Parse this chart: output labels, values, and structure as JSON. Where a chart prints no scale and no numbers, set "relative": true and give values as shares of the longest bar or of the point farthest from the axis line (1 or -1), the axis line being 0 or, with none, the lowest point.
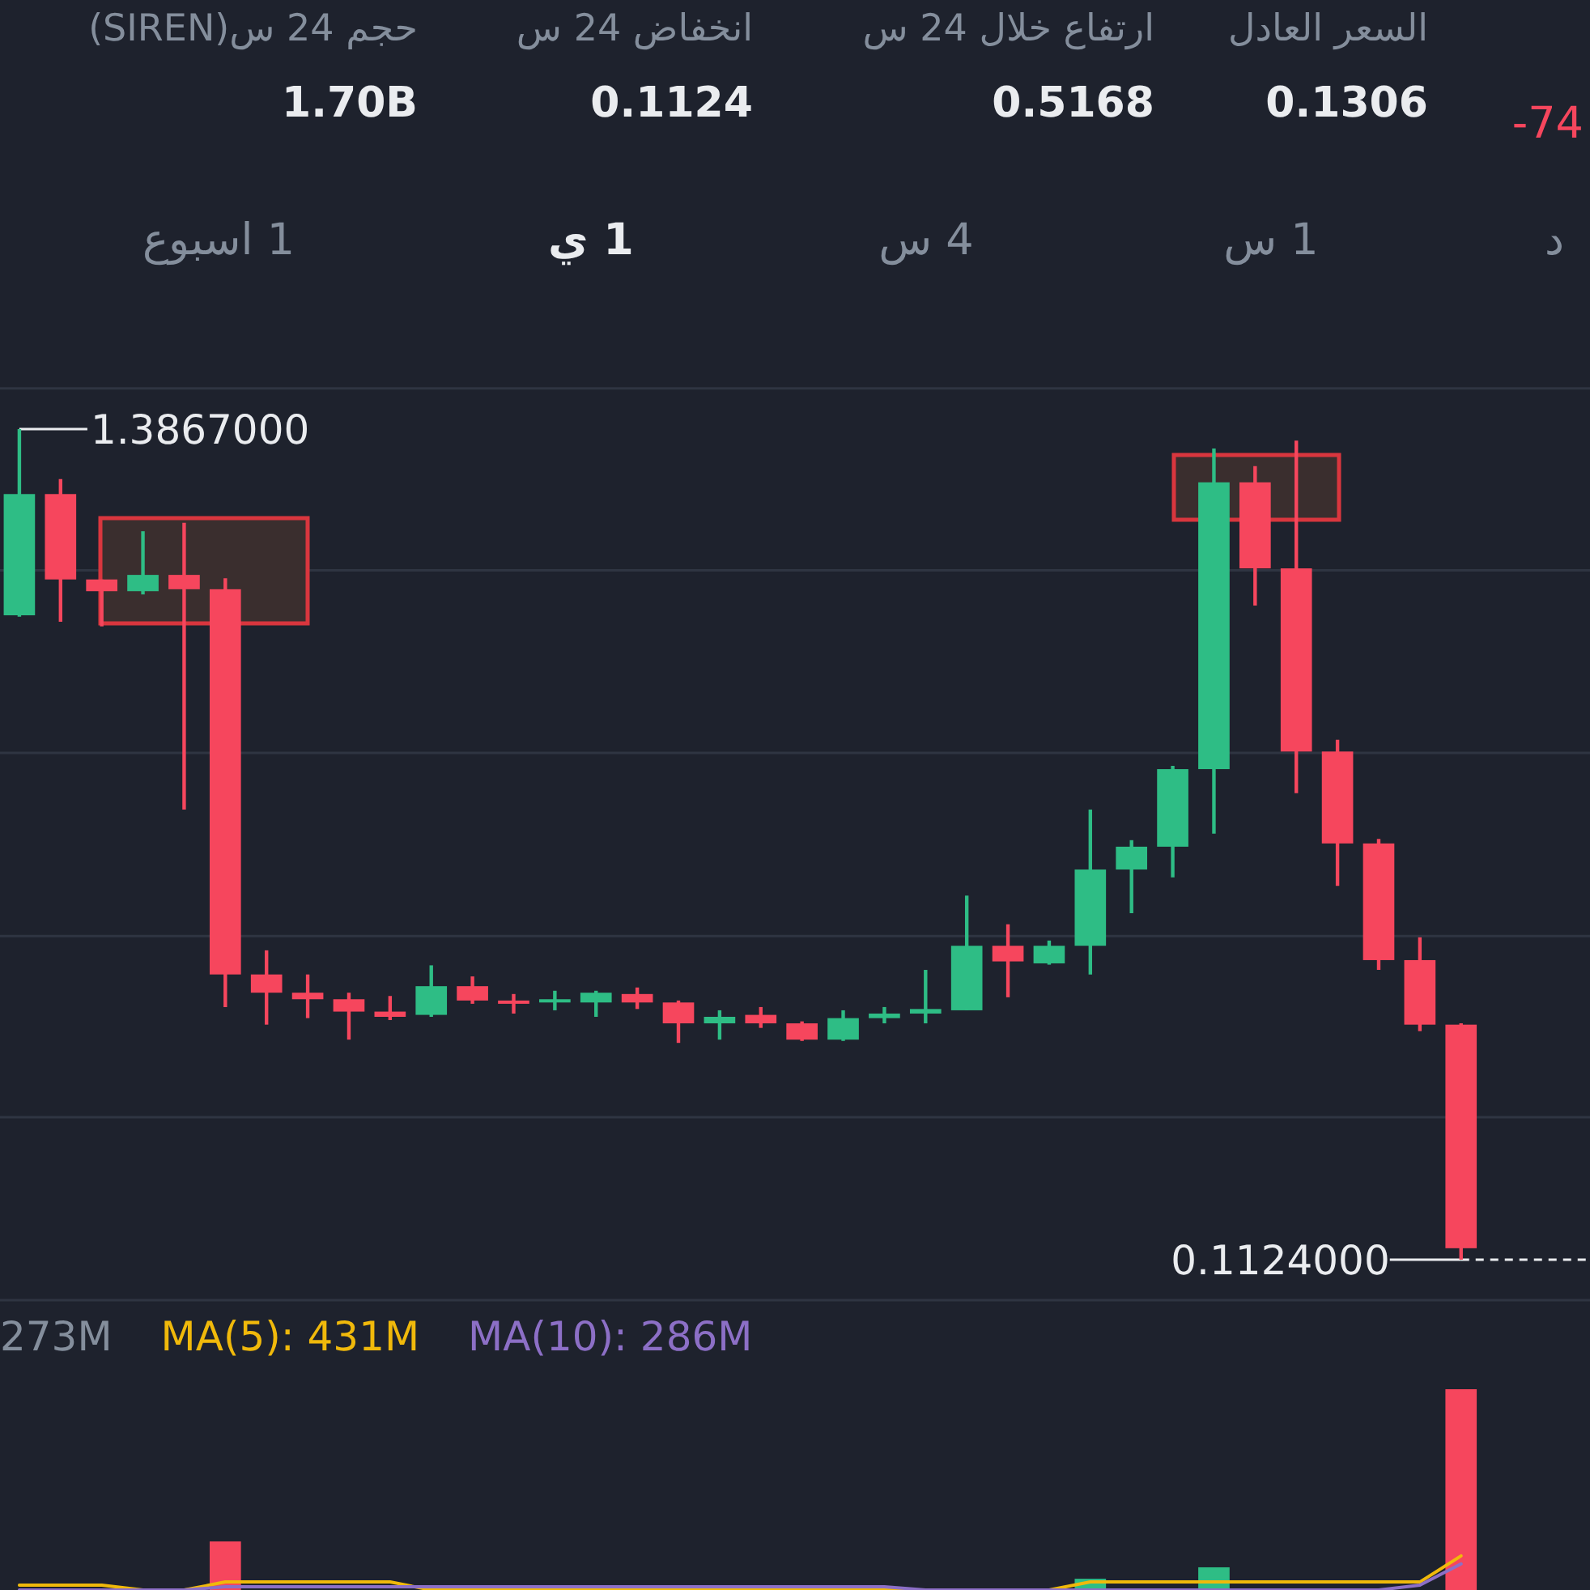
{
  "chart_data": [
    {
      "type": "other",
      "annotations": [
        "حجم 24 س(SIREN)",
        "1.70B",
        "انخفاض 24 س",
        "0.1124",
        "ارتفاع خلال 24 س",
        "0.5168",
        "السعر العادل",
        "0.1306",
        "-74",
        "1 اسبوع",
        "1 ي",
        "4 س",
        "1 س",
        "د"
      ]
    },
    {
      "type": "candlestick",
      "categories": [
        null,
        null,
        null,
        null,
        null,
        null,
        null,
        null,
        null,
        null,
        null,
        null,
        null,
        null,
        null,
        null,
        null,
        null,
        null,
        null,
        null,
        null,
        null,
        null,
        null,
        null,
        null,
        null,
        null,
        null,
        null,
        null,
        null,
        null,
        null,
        null
      ],
      "ohlc": [
        [
          1.101,
          1.3867,
          1.099,
          1.287
        ],
        [
          1.287,
          1.31,
          1.091,
          1.156
        ],
        [
          1.156,
          1.156,
          1.084,
          1.138
        ],
        [
          1.138,
          1.23,
          1.133,
          1.163
        ],
        [
          1.163,
          1.243,
          0.803,
          1.141
        ],
        [
          1.141,
          1.158,
          0.5,
          0.55
        ],
        [
          0.55,
          0.587,
          0.473,
          0.522
        ],
        [
          0.522,
          0.55,
          0.483,
          0.512
        ],
        [
          0.512,
          0.522,
          0.45,
          0.493
        ],
        [
          0.493,
          0.517,
          0.48,
          0.485
        ],
        [
          0.488,
          0.564,
          0.485,
          0.532
        ],
        [
          0.532,
          0.547,
          0.505,
          0.51
        ],
        [
          0.51,
          0.52,
          0.49,
          0.505
        ],
        [
          0.507,
          0.525,
          0.495,
          0.512
        ],
        [
          0.507,
          0.525,
          0.485,
          0.522
        ],
        [
          0.52,
          0.53,
          0.497,
          0.507
        ],
        [
          0.507,
          0.51,
          0.445,
          0.475
        ],
        [
          0.475,
          0.495,
          0.45,
          0.485
        ],
        [
          0.488,
          0.5,
          0.468,
          0.475
        ],
        [
          0.475,
          0.478,
          0.448,
          0.45
        ],
        [
          0.45,
          0.495,
          0.448,
          0.483
        ],
        [
          0.483,
          0.5,
          0.475,
          0.49
        ],
        [
          0.49,
          0.557,
          0.475,
          0.497
        ],
        [
          0.495,
          0.671,
          0.495,
          0.594
        ],
        [
          0.594,
          0.627,
          0.515,
          0.57
        ],
        [
          0.567,
          0.602,
          0.565,
          0.594
        ],
        [
          0.594,
          0.803,
          0.55,
          0.711
        ],
        [
          0.711,
          0.756,
          0.644,
          0.746
        ],
        [
          0.746,
          0.87,
          0.699,
          0.865
        ],
        [
          0.865,
          1.357,
          0.766,
          1.305
        ],
        [
          1.305,
          1.33,
          1.116,
          1.173
        ],
        [
          1.173,
          1.369,
          0.828,
          0.892
        ],
        [
          0.892,
          0.91,
          0.686,
          0.751
        ],
        [
          0.751,
          0.758,
          0.557,
          0.572
        ],
        [
          0.572,
          0.607,
          0.463,
          0.473
        ],
        [
          0.473,
          0.475,
          0.1124,
          0.13
        ]
      ],
      "yticks": [
        {
          "value": 0.331,
          "label": null
        },
        {
          "value": 0.609,
          "label": null
        },
        {
          "value": 0.89,
          "label": null
        },
        {
          "value": 1.17,
          "label": null
        },
        {
          "value": 1.449,
          "label": null
        }
      ],
      "grid": "y",
      "annotations": [
        "1.3867000",
        "0.1124000"
      ]
    },
    {
      "type": "bar",
      "relative": true,
      "categories": [
        null,
        null,
        null,
        null,
        null,
        null,
        null,
        null,
        null,
        null,
        null,
        null,
        null,
        null,
        null,
        null,
        null,
        null,
        null,
        null,
        null,
        null,
        null,
        null,
        null,
        null,
        null,
        null,
        null,
        null,
        null,
        null,
        null,
        null,
        null,
        null
      ],
      "annotations": [
        "273M"
      ],
      "series": [
        {
          "type": "bar",
          "colors": [
            "#2ebd85",
            "#f6465d",
            "#f6465d",
            "#2ebd85",
            "#f6465d",
            "#f6465d",
            "#f6465d",
            "#f6465d",
            "#f6465d",
            "#f6465d",
            "#2ebd85",
            "#f6465d",
            "#f6465d",
            "#2ebd85",
            "#2ebd85",
            "#f6465d",
            "#f6465d",
            "#2ebd85",
            "#f6465d",
            "#f6465d",
            "#2ebd85",
            "#2ebd85",
            "#2ebd85",
            "#2ebd85",
            "#f6465d",
            "#2ebd85",
            "#2ebd85",
            "#2ebd85",
            "#2ebd85",
            "#2ebd85",
            "#f6465d",
            "#f6465d",
            "#f6465d",
            "#f6465d",
            "#f6465d",
            "#f6465d"
          ],
          "values": [
            0,
            0,
            0,
            0,
            0,
            0.242,
            0,
            0,
            0,
            0,
            0,
            0,
            0,
            0,
            0,
            0,
            0,
            0,
            0,
            0,
            0,
            0,
            0,
            0,
            0,
            0,
            0.056,
            0,
            0,
            0.113,
            0,
            0,
            0,
            0,
            0,
            1
          ]
        },
        {
          "type": "line",
          "name": "MA(5): 431M",
          "color": "#f0b90b",
          "values": [
            0.024,
            0.024,
            0.024,
            0,
            0,
            0.04,
            0.04,
            0.04,
            0.04,
            0.04,
            0,
            0,
            0,
            0,
            0,
            0,
            0,
            0,
            0,
            0,
            0,
            0,
            0,
            0,
            0,
            0,
            0.04,
            0.04,
            0.04,
            0.04,
            0.04,
            0.04,
            0.04,
            0.04,
            0.04,
            0.17
          ]
        },
        {
          "type": "line",
          "name": "MA(10): 286M",
          "color": "#8c6fc6",
          "values": [
            0,
            0,
            0,
            0,
            0,
            0.016,
            0.016,
            0.016,
            0.016,
            0.016,
            0.016,
            0.016,
            0.016,
            0.016,
            0.016,
            0.016,
            0.016,
            0.016,
            0.016,
            0.016,
            0.016,
            0.016,
            0,
            0,
            0,
            0,
            0,
            0,
            0,
            0,
            0,
            0,
            0,
            0,
            0.024,
            0.13
          ]
        }
      ]
    }
  ]
}
